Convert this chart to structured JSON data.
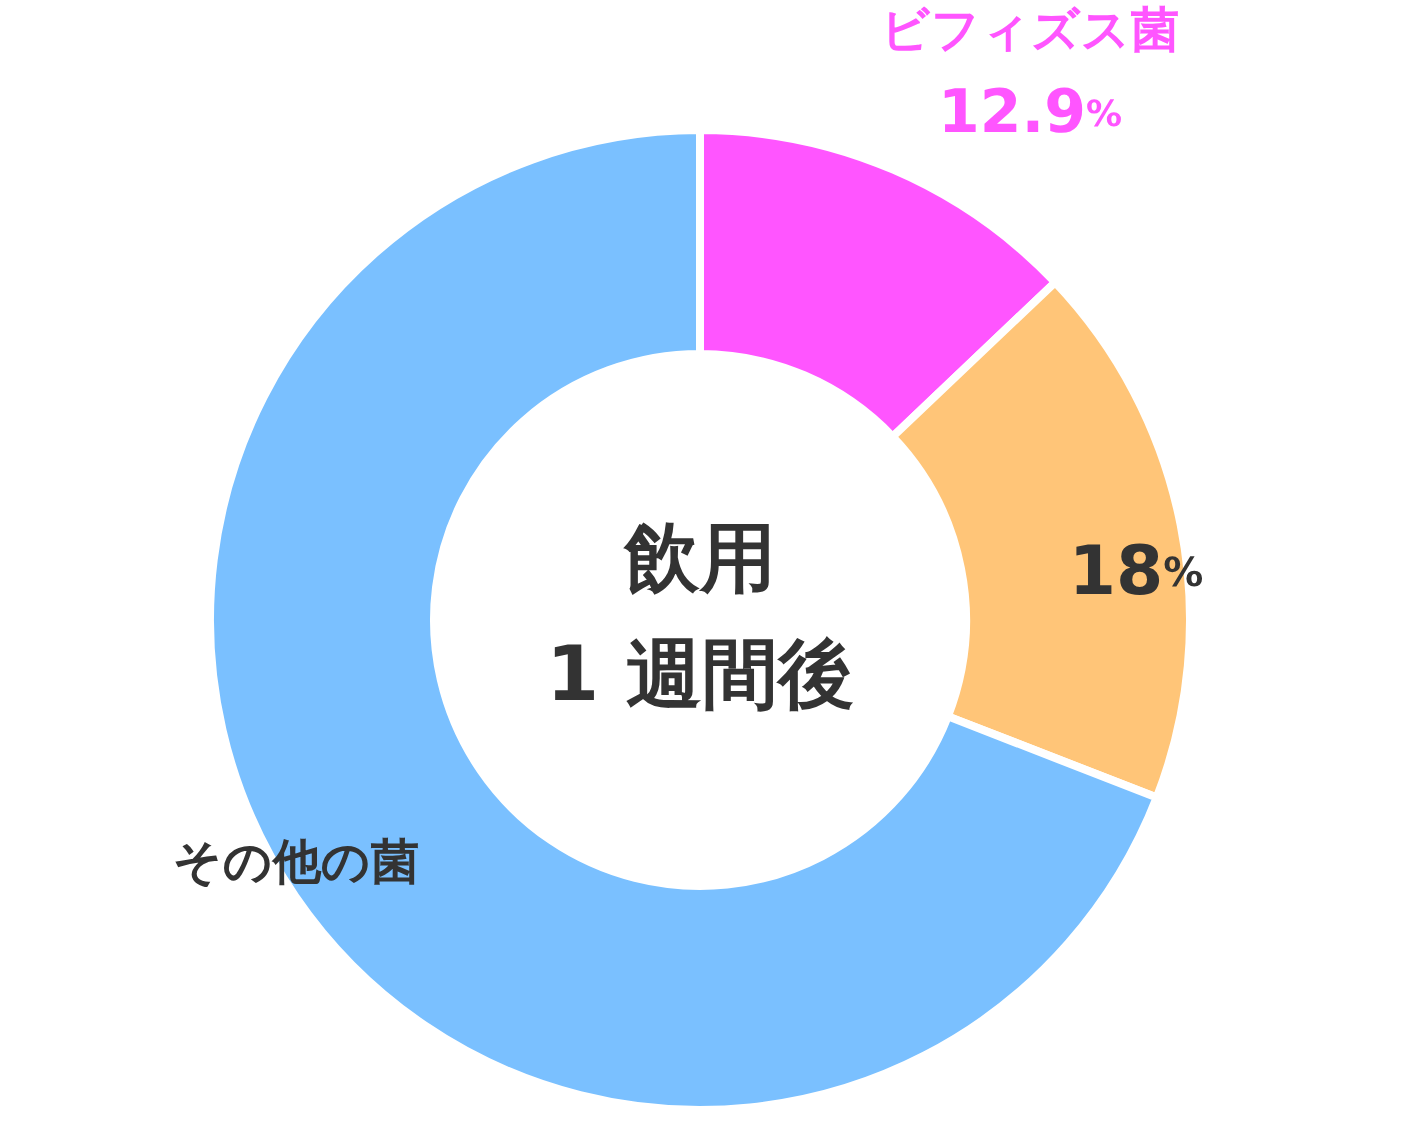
{
  "chart_data": {
    "type": "donut",
    "title": "飲用",
    "subtitle": "1 週間後",
    "categories": [
      "ビフィズス菌",
      null,
      "その他の菌"
    ],
    "values": [
      12.9,
      18,
      69.1
    ],
    "colors": [
      "#ff55ff",
      "#ffc578",
      "#7ac0ff"
    ],
    "value_labels": [
      "12.9%",
      "18%",
      null
    ]
  }
}
